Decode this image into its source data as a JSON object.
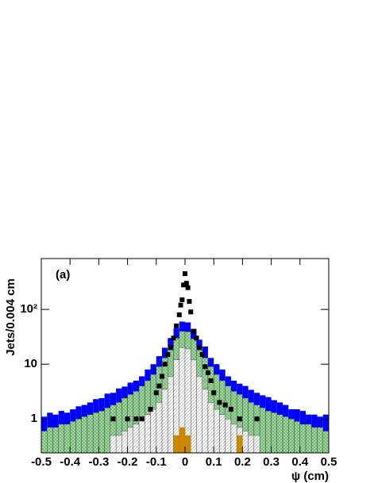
{
  "chart_data": {
    "type": "histogram",
    "y_label": "Jets/0.004 cm",
    "x_label": "ψ (cm)",
    "annotation": "(a)",
    "log_y": true,
    "xlim": [
      -0.5,
      0.5
    ],
    "ylim": [
      0.24,
      850
    ],
    "xticks": [
      -0.5,
      -0.4,
      -0.3,
      -0.2,
      -0.1,
      0,
      0.1,
      0.2,
      0.3,
      0.4,
      0.5
    ],
    "yticks": [
      1,
      10,
      {
        "value": 100,
        "label": "10²"
      }
    ],
    "bins": [
      -0.5,
      -0.48,
      -0.46,
      -0.44,
      -0.42,
      -0.4,
      -0.38,
      -0.36,
      -0.34,
      -0.32,
      -0.3,
      -0.28,
      -0.26,
      -0.24,
      -0.22,
      -0.2,
      -0.18,
      -0.16,
      -0.14,
      -0.12,
      -0.1,
      -0.08,
      -0.06,
      -0.04,
      -0.02,
      0,
      0.02,
      0.04,
      0.06,
      0.08,
      0.1,
      0.12,
      0.14,
      0.16,
      0.18,
      0.2,
      0.22,
      0.24,
      0.26,
      0.28,
      0.3,
      0.32,
      0.34,
      0.36,
      0.38,
      0.4,
      0.42,
      0.44,
      0.46,
      0.48,
      0.5
    ],
    "series": [
      {
        "color": "#0000ff",
        "hatch": false,
        "values": [
          1.1,
          1.3,
          1.2,
          1.4,
          1.3,
          1.5,
          1.7,
          1.8,
          2,
          2.3,
          2.4,
          2.9,
          3,
          3.6,
          3.9,
          4.6,
          5,
          6,
          8,
          10,
          14,
          20,
          30,
          45,
          60,
          58,
          44,
          28,
          21,
          13,
          10,
          8,
          6,
          5,
          4.4,
          4,
          3.4,
          3,
          2.7,
          2.5,
          2.2,
          2,
          1.8,
          1.5,
          1.5,
          1.4,
          1.2,
          1.2,
          1.1,
          1.2
        ]
      },
      {
        "color": "#a8e0a8",
        "hatch": true,
        "values": [
          0.6,
          0.7,
          0.7,
          0.8,
          0.8,
          0.9,
          1,
          1.1,
          1.2,
          1.3,
          1.4,
          1.6,
          1.8,
          2,
          2.4,
          2.8,
          3.2,
          4,
          5,
          6.5,
          9,
          13,
          20,
          30,
          40,
          39,
          29,
          20,
          13,
          9,
          6.5,
          5,
          4,
          3.2,
          2.8,
          2.4,
          2,
          1.8,
          1.6,
          1.4,
          1.3,
          1.2,
          1.1,
          1,
          0.9,
          0.8,
          0.8,
          0.7,
          0.7,
          0.6
        ]
      },
      {
        "color": "#ffffff",
        "hatch": true,
        "values": [
          null,
          null,
          null,
          null,
          null,
          null,
          null,
          null,
          null,
          null,
          null,
          null,
          0.5,
          0.5,
          0.6,
          0.7,
          0.8,
          1,
          1.2,
          1.5,
          2,
          3.5,
          6,
          12,
          20,
          19,
          12,
          6,
          3.5,
          2,
          1.5,
          1.2,
          1,
          0.8,
          0.7,
          0.6,
          0.5,
          0.5,
          null,
          null,
          null,
          null,
          null,
          null,
          null,
          null,
          null,
          null,
          null,
          null
        ]
      },
      {
        "color": "#cc8800",
        "hatch": false,
        "values": [
          null,
          null,
          null,
          null,
          null,
          null,
          null,
          null,
          null,
          null,
          null,
          null,
          null,
          null,
          null,
          null,
          null,
          null,
          null,
          null,
          null,
          null,
          null,
          0.5,
          0.7,
          0.5,
          null,
          null,
          null,
          null,
          null,
          null,
          null,
          null,
          0.5,
          null,
          null,
          null,
          null,
          null,
          null,
          null,
          null,
          null,
          null,
          null,
          null,
          null,
          null,
          null
        ]
      }
    ],
    "points": {
      "color": "#000000",
      "x": [
        0,
        0.005,
        -0.005,
        0.01,
        -0.01,
        -0.015,
        0.015,
        0.02,
        -0.02,
        -0.03,
        0.03,
        -0.04,
        0.04,
        -0.05,
        0.05,
        -0.06,
        0.06,
        -0.07,
        0.07,
        -0.08,
        0.08,
        -0.09,
        0.09,
        -0.1,
        0.1,
        0.12,
        -0.12,
        0.14,
        0.16,
        0.19,
        -0.15,
        -0.2,
        -0.17,
        -0.25,
        0.25
      ],
      "y": [
        450,
        300,
        280,
        250,
        150,
        120,
        140,
        90,
        80,
        50,
        40,
        30,
        30,
        20,
        20,
        15,
        15,
        10,
        9,
        6,
        7,
        4,
        5,
        3,
        3,
        2,
        1.5,
        1.8,
        1.5,
        1,
        1,
        1,
        1,
        1,
        1
      ]
    }
  }
}
